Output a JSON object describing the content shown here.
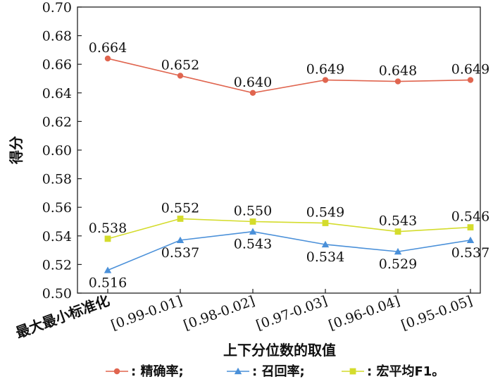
{
  "chart_data": {
    "type": "line",
    "ylabel": "得分",
    "xlabel": "上下分位数的取值",
    "categories": [
      "最大最小标准化",
      "[0.99-0.01]",
      "[0.98-0.02]",
      "[0.97-0.03]",
      "[0.96-0.04]",
      "[0.95-0.05]"
    ],
    "ylim": [
      0.5,
      0.7
    ],
    "yticks": [
      "0.50",
      "0.52",
      "0.54",
      "0.56",
      "0.58",
      "0.60",
      "0.62",
      "0.64",
      "0.66",
      "0.68",
      "0.70"
    ],
    "grid": false,
    "legend_position": "bottom",
    "series": [
      {
        "name": "精确率",
        "legend_text": ": 精确率;",
        "color": "#e0654f",
        "marker": "circle",
        "values": [
          0.664,
          0.652,
          0.64,
          0.649,
          0.648,
          0.649
        ],
        "labels": [
          "0.664",
          "0.652",
          "0.640",
          "0.649",
          "0.648",
          "0.649"
        ]
      },
      {
        "name": "召回率",
        "legend_text": ": 召回率;",
        "color": "#4a90d9",
        "marker": "triangle",
        "values": [
          0.516,
          0.537,
          0.543,
          0.534,
          0.529,
          0.537
        ],
        "labels": [
          "0.516",
          "0.537",
          "0.543",
          "0.534",
          "0.529",
          "0.537"
        ]
      },
      {
        "name": "宏平均F1",
        "legend_text": ": 宏平均F1。",
        "color": "#d4dc2c",
        "marker": "square",
        "values": [
          0.538,
          0.552,
          0.55,
          0.549,
          0.543,
          0.546
        ],
        "labels": [
          "0.538",
          "0.552",
          "0.550",
          "0.549",
          "0.543",
          "0.546"
        ]
      }
    ]
  }
}
